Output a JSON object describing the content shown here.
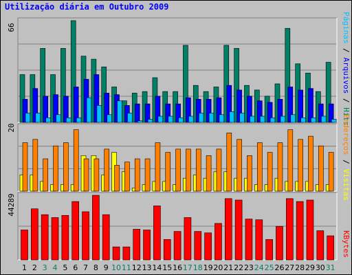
{
  "title": "Utilização diária em Outubro 2009",
  "colors": {
    "hits": "#008066",
    "files": "#0000ff",
    "pages": "#00c0ff",
    "visits": "#ffff00",
    "sites": "#ff8000",
    "kbytes": "#ff0000",
    "weekend_day": "#008066",
    "weekday_day": "#000000"
  },
  "chart_data": [
    {
      "type": "bar",
      "panel": "hits-files-pages",
      "y_max_label": "66",
      "ylim": [
        0,
        66
      ],
      "categories": [
        "1",
        "2",
        "3",
        "4",
        "5",
        "6",
        "7",
        "8",
        "9",
        "10",
        "11",
        "12",
        "13",
        "14",
        "15",
        "16",
        "17",
        "18",
        "19",
        "20",
        "21",
        "22",
        "23",
        "24",
        "25",
        "26",
        "27",
        "28",
        "29",
        "30",
        "31"
      ],
      "weekend_days": [
        "3",
        "4",
        "10",
        "11",
        "17",
        "18",
        "24",
        "25",
        "31"
      ],
      "series": [
        {
          "name": "Hits",
          "values": [
            31,
            31,
            48,
            31,
            48,
            66,
            43,
            41,
            36,
            23,
            14,
            19,
            20,
            29,
            20,
            20,
            50,
            24,
            20,
            23,
            50,
            48,
            24,
            21,
            17,
            25,
            61,
            38,
            32,
            20,
            39
          ]
        },
        {
          "name": "Arquivos",
          "values": [
            15,
            22,
            17,
            18,
            17,
            23,
            28,
            31,
            19,
            18,
            11,
            12,
            12,
            17,
            12,
            12,
            16,
            15,
            15,
            16,
            24,
            21,
            17,
            14,
            13,
            15,
            23,
            21,
            22,
            12,
            12
          ]
        },
        {
          "name": "Páginas",
          "values": [
            6,
            6,
            3,
            5,
            3,
            3,
            16,
            11,
            5,
            14,
            6,
            1,
            2,
            4,
            4,
            3,
            4,
            6,
            6,
            5,
            7,
            6,
            4,
            4,
            3,
            4,
            5,
            3,
            3,
            4,
            2
          ]
        }
      ]
    },
    {
      "type": "bar",
      "panel": "visits-sites",
      "y_max_label": "20",
      "ylim": [
        0,
        20
      ],
      "categories": [
        "1",
        "2",
        "3",
        "4",
        "5",
        "6",
        "7",
        "8",
        "9",
        "10",
        "11",
        "12",
        "13",
        "14",
        "15",
        "16",
        "17",
        "18",
        "19",
        "20",
        "21",
        "22",
        "23",
        "24",
        "25",
        "26",
        "27",
        "28",
        "29",
        "30",
        "31"
      ],
      "series": [
        {
          "name": "Visitas",
          "values": [
            5,
            5,
            3,
            2,
            2,
            2,
            11,
            11,
            5,
            12,
            6,
            1,
            2,
            3,
            3,
            2,
            4,
            5,
            4,
            6,
            6,
            4,
            4,
            2,
            2,
            4,
            3,
            3,
            3,
            2,
            2
          ]
        },
        {
          "name": "Endereços",
          "values": [
            15,
            16,
            10,
            14,
            15,
            19,
            10,
            10,
            13,
            8,
            9,
            10,
            10,
            15,
            12,
            13,
            13,
            13,
            11,
            13,
            18,
            16,
            11,
            15,
            12,
            15,
            19,
            16,
            17,
            14,
            12
          ]
        }
      ]
    },
    {
      "type": "bar",
      "panel": "kbytes",
      "y_max_label": "44289",
      "ylim": [
        0,
        44289
      ],
      "categories": [
        "1",
        "2",
        "3",
        "4",
        "5",
        "6",
        "7",
        "8",
        "9",
        "10",
        "11",
        "12",
        "13",
        "14",
        "15",
        "16",
        "17",
        "18",
        "19",
        "20",
        "21",
        "22",
        "23",
        "24",
        "25",
        "26",
        "27",
        "28",
        "29",
        "30",
        "31"
      ],
      "series": [
        {
          "name": "KBytes",
          "values": [
            20500,
            35000,
            31000,
            29000,
            30500,
            40000,
            33000,
            44289,
            31000,
            8900,
            8900,
            21000,
            20500,
            37000,
            14000,
            19500,
            29000,
            19500,
            18500,
            25000,
            42000,
            41000,
            28000,
            27500,
            14000,
            23000,
            42000,
            40000,
            41000,
            20000,
            16500
          ]
        }
      ]
    }
  ]
}
